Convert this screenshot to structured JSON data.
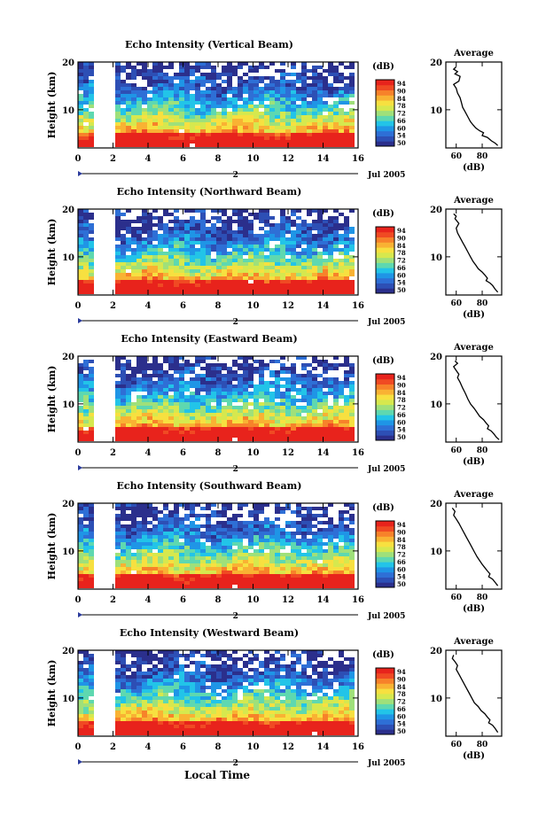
{
  "chart_data": {
    "type": "heatmap",
    "figure_xlabel": "Local Time",
    "colorbar": {
      "unit_label": "(dB)",
      "tick_labels": [
        "50",
        "54",
        "60",
        "66",
        "72",
        "78",
        "84",
        "90",
        "94"
      ],
      "colors": [
        "#2b2f8c",
        "#2d4fb5",
        "#2e6fd6",
        "#1f95e6",
        "#22c4e8",
        "#5ed8b0",
        "#9fe07a",
        "#d6e84e",
        "#f7e040",
        "#f9b233",
        "#f7822a",
        "#f04a23",
        "#e8231c"
      ]
    },
    "panels": [
      {
        "title": "Echo Intensity (Vertical Beam)",
        "ylabel": "Height (km)",
        "ylim": [
          2,
          20
        ],
        "yticks": [
          "10",
          "20"
        ],
        "xlim": [
          0,
          16
        ],
        "xticks": [
          "0",
          "2",
          "4",
          "6",
          "8",
          "10",
          "12",
          "14",
          "16"
        ],
        "date_label": "Jul 2005",
        "day_label": "2",
        "colorbar_ticks": [
          "50",
          "54",
          "60",
          "66",
          "72",
          "78",
          "84",
          "90",
          "94"
        ],
        "profile": {
          "title": "Average",
          "xlabel": "(dB)",
          "xticks": [
            "60",
            "80"
          ],
          "xlim": [
            52,
            95
          ],
          "yticks": [
            "10",
            "20"
          ],
          "ylim": [
            2,
            20
          ],
          "points": [
            [
              60,
              19
            ],
            [
              58,
              18.5
            ],
            [
              61,
              18
            ],
            [
              59,
              17.5
            ],
            [
              63,
              17
            ],
            [
              62,
              16
            ],
            [
              58,
              15.3
            ],
            [
              60,
              14.5
            ],
            [
              61,
              13.5
            ],
            [
              63,
              12.5
            ],
            [
              64,
              11.5
            ],
            [
              65,
              10.5
            ],
            [
              67,
              9.5
            ],
            [
              69,
              8.5
            ],
            [
              71,
              7.5
            ],
            [
              73,
              6.8
            ],
            [
              75,
              6.2
            ],
            [
              78,
              5.6
            ],
            [
              81,
              5.2
            ],
            [
              80,
              4.6
            ],
            [
              84,
              4.2
            ],
            [
              87,
              3.5
            ],
            [
              90,
              3.0
            ],
            [
              92,
              2.5
            ]
          ]
        }
      },
      {
        "title": "Echo Intensity (Northward Beam)",
        "ylabel": "Height (km)",
        "ylim": [
          2,
          20
        ],
        "yticks": [
          "10",
          "20"
        ],
        "xlim": [
          0,
          16
        ],
        "xticks": [
          "0",
          "2",
          "4",
          "6",
          "8",
          "10",
          "12",
          "14",
          "16"
        ],
        "date_label": "Jul 2005",
        "day_label": "2",
        "colorbar_ticks": [
          "50",
          "54",
          "60",
          "66",
          "72",
          "78",
          "84",
          "90",
          "94"
        ],
        "profile": {
          "title": "Average",
          "xlabel": "(dB)",
          "xticks": [
            "60",
            "80"
          ],
          "xlim": [
            52,
            95
          ],
          "yticks": [
            "10",
            "20"
          ],
          "ylim": [
            2,
            20
          ],
          "points": [
            [
              58,
              19
            ],
            [
              60,
              18.5
            ],
            [
              59,
              18
            ],
            [
              62,
              17
            ],
            [
              60,
              16
            ],
            [
              61,
              15
            ],
            [
              63,
              14
            ],
            [
              65,
              13
            ],
            [
              67,
              12
            ],
            [
              69,
              11
            ],
            [
              71,
              10
            ],
            [
              73,
              9
            ],
            [
              75,
              8.3
            ],
            [
              77,
              7.5
            ],
            [
              80,
              6.8
            ],
            [
              82,
              6.2
            ],
            [
              84,
              5.5
            ],
            [
              83,
              5.0
            ],
            [
              86,
              4.5
            ],
            [
              88,
              4.0
            ],
            [
              90,
              3.2
            ],
            [
              92,
              2.6
            ]
          ]
        }
      },
      {
        "title": "Echo Intensity (Eastward Beam)",
        "ylabel": "Height (km)",
        "ylim": [
          2,
          20
        ],
        "yticks": [
          "10",
          "20"
        ],
        "xlim": [
          0,
          16
        ],
        "xticks": [
          "0",
          "2",
          "4",
          "6",
          "8",
          "10",
          "12",
          "14",
          "16"
        ],
        "date_label": "Jul 2005",
        "day_label": "2",
        "colorbar_ticks": [
          "50",
          "54",
          "60",
          "66",
          "72",
          "78",
          "84",
          "90",
          "94"
        ],
        "profile": {
          "title": "Average",
          "xlabel": "(dB)",
          "xticks": [
            "60",
            "80"
          ],
          "xlim": [
            52,
            95
          ],
          "yticks": [
            "10",
            "20"
          ],
          "ylim": [
            2,
            20
          ],
          "points": [
            [
              59,
              19
            ],
            [
              61,
              18.5
            ],
            [
              58,
              17.8
            ],
            [
              60,
              17
            ],
            [
              62,
              16.2
            ],
            [
              61,
              15.5
            ],
            [
              63,
              14.5
            ],
            [
              65,
              13.3
            ],
            [
              67,
              12.2
            ],
            [
              69,
              11
            ],
            [
              71,
              10
            ],
            [
              74,
              9
            ],
            [
              76,
              8.2
            ],
            [
              78,
              7.4
            ],
            [
              81,
              6.7
            ],
            [
              83,
              6.0
            ],
            [
              85,
              5.4
            ],
            [
              84,
              4.8
            ],
            [
              87,
              4.3
            ],
            [
              89,
              3.7
            ],
            [
              91,
              3.0
            ],
            [
              93,
              2.5
            ]
          ]
        }
      },
      {
        "title": "Echo Intensity (Southward Beam)",
        "ylabel": "Height (km)",
        "ylim": [
          2,
          20
        ],
        "yticks": [
          "10",
          "20"
        ],
        "xlim": [
          0,
          16
        ],
        "xticks": [
          "0",
          "2",
          "4",
          "6",
          "8",
          "10",
          "12",
          "14",
          "16"
        ],
        "date_label": "Jul 2005",
        "day_label": "2",
        "colorbar_ticks": [
          "50",
          "54",
          "60",
          "66",
          "72",
          "78",
          "84",
          "90",
          "94"
        ],
        "profile": {
          "title": "Average",
          "xlabel": "(dB)",
          "xticks": [
            "60",
            "80"
          ],
          "xlim": [
            52,
            95
          ],
          "yticks": [
            "10",
            "20"
          ],
          "ylim": [
            2,
            20
          ],
          "points": [
            [
              57,
              19
            ],
            [
              59,
              18.3
            ],
            [
              58,
              17.5
            ],
            [
              60,
              16.7
            ],
            [
              62,
              15.8
            ],
            [
              64,
              14.8
            ],
            [
              66,
              13.8
            ],
            [
              68,
              12.8
            ],
            [
              70,
              11.8
            ],
            [
              72,
              10.8
            ],
            [
              74,
              9.8
            ],
            [
              76,
              8.8
            ],
            [
              78,
              8.0
            ],
            [
              80,
              7.2
            ],
            [
              82,
              6.5
            ],
            [
              84,
              5.8
            ],
            [
              86,
              5.2
            ],
            [
              85,
              4.6
            ],
            [
              88,
              4.1
            ],
            [
              90,
              3.4
            ],
            [
              92,
              2.7
            ]
          ]
        }
      },
      {
        "title": "Echo Intensity (Westward Beam)",
        "ylabel": "Height (km)",
        "ylim": [
          2,
          20
        ],
        "yticks": [
          "10",
          "20"
        ],
        "xlim": [
          0,
          16
        ],
        "xticks": [
          "0",
          "2",
          "4",
          "6",
          "8",
          "10",
          "12",
          "14",
          "16"
        ],
        "date_label": "Jul 2005",
        "day_label": "2",
        "colorbar_ticks": [
          "50",
          "54",
          "60",
          "66",
          "72",
          "78",
          "84",
          "90",
          "94"
        ],
        "profile": {
          "title": "Average",
          "xlabel": "(dB)",
          "xticks": [
            "60",
            "80"
          ],
          "xlim": [
            52,
            95
          ],
          "yticks": [
            "10",
            "20"
          ],
          "ylim": [
            2,
            20
          ],
          "points": [
            [
              58,
              19
            ],
            [
              57,
              18.3
            ],
            [
              59,
              17.6
            ],
            [
              61,
              16.8
            ],
            [
              60,
              16
            ],
            [
              62,
              15
            ],
            [
              64,
              14
            ],
            [
              66,
              13
            ],
            [
              68,
              12
            ],
            [
              70,
              11
            ],
            [
              72,
              10
            ],
            [
              74,
              9
            ],
            [
              77,
              8.2
            ],
            [
              79,
              7.4
            ],
            [
              82,
              6.7
            ],
            [
              84,
              6.0
            ],
            [
              86,
              5.4
            ],
            [
              85,
              4.8
            ],
            [
              88,
              4.3
            ],
            [
              90,
              3.6
            ],
            [
              92,
              2.8
            ]
          ]
        }
      }
    ]
  }
}
